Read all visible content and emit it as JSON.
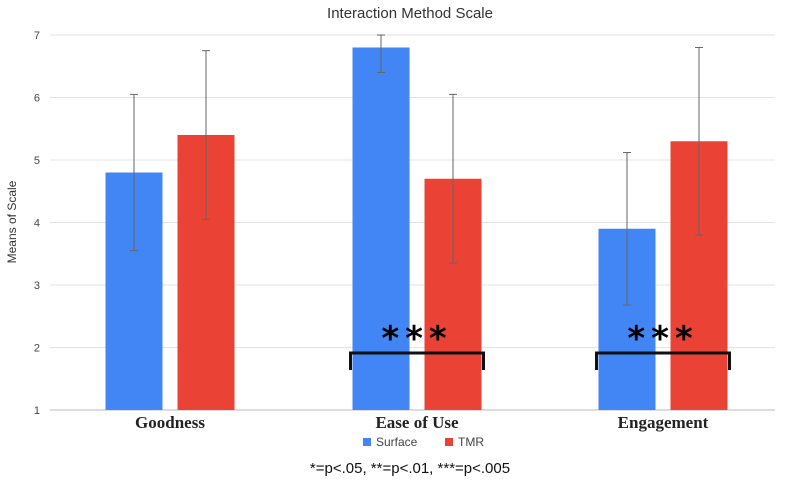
{
  "chart_data": {
    "type": "bar",
    "title": "Interaction Method Scale",
    "xlabel": "",
    "ylabel": "Means of Scale",
    "ylim": [
      1,
      7
    ],
    "yticks": [
      "1",
      "2",
      "3",
      "4",
      "5",
      "6",
      "7"
    ],
    "categories": [
      "Goodness",
      "Ease of Use",
      "Engagement"
    ],
    "grid": true,
    "legend_position": "bottom-center",
    "series": [
      {
        "name": "Surface",
        "color": "#4285f4",
        "values": [
          4.8,
          6.8,
          3.9
        ],
        "error_low": [
          3.55,
          6.4,
          2.68
        ],
        "error_high": [
          6.05,
          7.0,
          5.12
        ]
      },
      {
        "name": "TMR",
        "color": "#ea4335",
        "values": [
          5.4,
          4.7,
          5.3
        ],
        "error_low": [
          4.05,
          3.35,
          3.8
        ],
        "error_high": [
          6.75,
          6.05,
          6.8
        ]
      }
    ],
    "annotations": [
      {
        "category": "Ease of Use",
        "text": "***"
      },
      {
        "category": "Engagement",
        "text": "***"
      }
    ],
    "footnote": "*=p<.05, **=p<.01, ***=p<.005"
  }
}
